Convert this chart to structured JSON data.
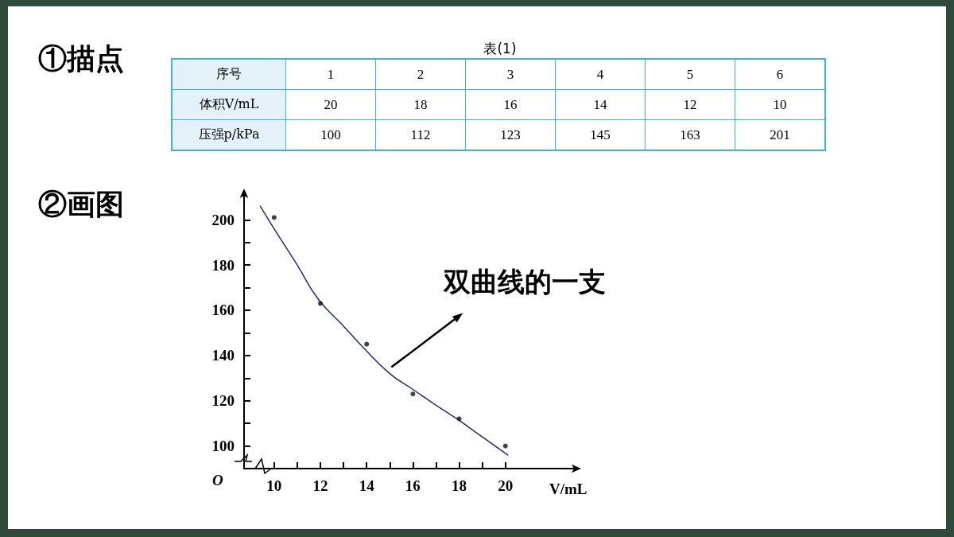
{
  "chart_data": {
    "type": "scatter",
    "title": "①描点",
    "subtitle": "表(1)",
    "xlabel": "V/mL",
    "xlim": [
      8.7,
      23
    ],
    "xticks": [
      10,
      {
        "value": 11,
        "label": null
      },
      12,
      {
        "value": 13,
        "label": null
      },
      14,
      {
        "value": 15,
        "label": null
      },
      16,
      {
        "value": 17,
        "label": null
      },
      18,
      {
        "value": 19,
        "label": null
      },
      20
    ],
    "ylim": [
      90,
      211
    ],
    "yticks": [
      100,
      {
        "value": 110,
        "label": null
      },
      120,
      {
        "value": 130,
        "label": null
      },
      140,
      {
        "value": 150,
        "label": null
      },
      160,
      {
        "value": 170,
        "label": null
      },
      180,
      {
        "value": 190,
        "label": null
      },
      200
    ],
    "grid": false,
    "marker": "circle",
    "series": [
      {
        "type": "scatter",
        "color": "#111111",
        "x": [
          20,
          18,
          16,
          14,
          12,
          10
        ],
        "values": [
          100,
          112,
          123,
          145,
          163,
          201
        ]
      },
      {
        "type": "line",
        "color": "#1c2f6b",
        "marker": "none",
        "line_style": "solid",
        "x": [
          9.4,
          10,
          11,
          11.9,
          13,
          13.9,
          15,
          16,
          17,
          17.9,
          19,
          20.1
        ],
        "values": [
          206,
          196,
          180,
          165,
          153,
          143,
          132,
          125,
          118,
          112,
          104,
          96
        ]
      }
    ],
    "annotations": [
      "序号",
      "1",
      "2",
      "3",
      "4",
      "5",
      "6",
      "体积V/mL",
      "20",
      "18",
      "16",
      "14",
      "12",
      "10",
      "压强p/kPa",
      "100",
      "112",
      "123",
      "145",
      "163",
      "201",
      "②画图",
      "O",
      "双曲线的一支"
    ]
  }
}
